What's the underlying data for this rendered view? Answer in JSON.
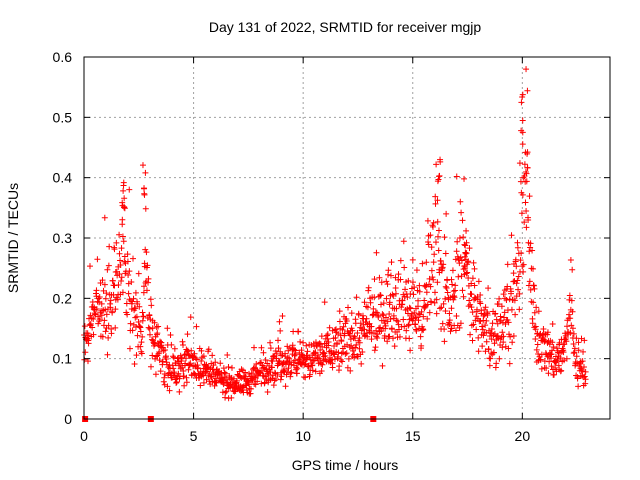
{
  "chart_data": {
    "type": "scatter",
    "title": "Day 131 of 2022, SRMTID for receiver mgjp",
    "xlabel": "GPS time / hours",
    "ylabel": "SRMTID / TECUs",
    "xlim": [
      0,
      24
    ],
    "ylim": [
      0,
      0.6
    ],
    "grid": true,
    "marker": "+",
    "color": "#ff0000",
    "x_ticks": [
      0,
      5,
      10,
      15,
      20
    ],
    "x_tick_labels": [
      "0",
      "5",
      "10",
      "15",
      "20"
    ],
    "y_ticks": [
      0,
      0.1,
      0.2,
      0.3,
      0.4,
      0.5,
      0.6
    ],
    "y_tick_labels": [
      "0",
      "0.1",
      "0.2",
      "0.3",
      "0.4",
      "0.5",
      "0.6"
    ],
    "baseline": [
      [
        0.05,
        0
      ],
      [
        3.05,
        0
      ],
      [
        13.2,
        0
      ]
    ],
    "trend": [
      [
        0.0,
        0.13
      ],
      [
        0.5,
        0.16
      ],
      [
        1.0,
        0.19
      ],
      [
        1.5,
        0.21
      ],
      [
        1.8,
        0.3
      ],
      [
        2.1,
        0.2
      ],
      [
        2.4,
        0.14
      ],
      [
        2.7,
        0.15
      ],
      [
        2.8,
        0.3
      ],
      [
        3.0,
        0.16
      ],
      [
        3.3,
        0.12
      ],
      [
        3.8,
        0.09
      ],
      [
        4.3,
        0.08
      ],
      [
        4.7,
        0.1
      ],
      [
        5.5,
        0.08
      ],
      [
        6.5,
        0.06
      ],
      [
        7.5,
        0.06
      ],
      [
        8.5,
        0.09
      ],
      [
        9.5,
        0.1
      ],
      [
        10.0,
        0.09
      ],
      [
        10.5,
        0.1
      ],
      [
        11.0,
        0.11
      ],
      [
        11.5,
        0.12
      ],
      [
        12.0,
        0.13
      ],
      [
        12.5,
        0.14
      ],
      [
        13.0,
        0.15
      ],
      [
        13.5,
        0.17
      ],
      [
        14.0,
        0.19
      ],
      [
        14.5,
        0.21
      ],
      [
        15.0,
        0.17
      ],
      [
        15.5,
        0.18
      ],
      [
        15.8,
        0.25
      ],
      [
        16.1,
        0.32
      ],
      [
        16.4,
        0.2
      ],
      [
        16.8,
        0.18
      ],
      [
        17.1,
        0.25
      ],
      [
        17.4,
        0.28
      ],
      [
        17.7,
        0.2
      ],
      [
        18.1,
        0.16
      ],
      [
        18.5,
        0.13
      ],
      [
        18.9,
        0.15
      ],
      [
        19.3,
        0.18
      ],
      [
        19.6,
        0.2
      ],
      [
        19.9,
        0.25
      ],
      [
        20.1,
        0.4
      ],
      [
        20.3,
        0.28
      ],
      [
        20.6,
        0.14
      ],
      [
        21.0,
        0.12
      ],
      [
        21.5,
        0.1
      ],
      [
        21.9,
        0.11
      ],
      [
        22.2,
        0.18
      ],
      [
        22.5,
        0.09
      ],
      [
        22.9,
        0.07
      ]
    ],
    "notable_peaks": [
      [
        1.8,
        0.4
      ],
      [
        2.75,
        0.425
      ],
      [
        16.2,
        0.44
      ],
      [
        17.4,
        0.28
      ],
      [
        20.0,
        0.545
      ],
      [
        20.2,
        0.46
      ]
    ]
  }
}
